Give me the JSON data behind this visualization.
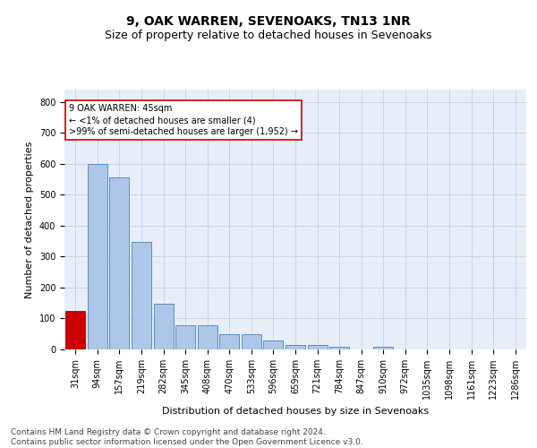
{
  "title": "9, OAK WARREN, SEVENOAKS, TN13 1NR",
  "subtitle": "Size of property relative to detached houses in Sevenoaks",
  "xlabel": "Distribution of detached houses by size in Sevenoaks",
  "ylabel": "Number of detached properties",
  "bar_labels": [
    "31sqm",
    "94sqm",
    "157sqm",
    "219sqm",
    "282sqm",
    "345sqm",
    "408sqm",
    "470sqm",
    "533sqm",
    "596sqm",
    "659sqm",
    "721sqm",
    "784sqm",
    "847sqm",
    "910sqm",
    "972sqm",
    "1035sqm",
    "1098sqm",
    "1161sqm",
    "1223sqm",
    "1286sqm"
  ],
  "bar_values": [
    125,
    600,
    557,
    347,
    148,
    78,
    78,
    50,
    50,
    30,
    14,
    14,
    10,
    0,
    8,
    0,
    0,
    0,
    0,
    0,
    0
  ],
  "bar_color": "#aec6e8",
  "bar_edge_color": "#5a8fc0",
  "highlighted_bar_index": 0,
  "highlight_color": "#cc0000",
  "annotation_text": "9 OAK WARREN: 45sqm\n← <1% of detached houses are smaller (4)\n>99% of semi-detached houses are larger (1,952) →",
  "annotation_box_color": "#ffffff",
  "annotation_box_edge": "#cc0000",
  "ylim": [
    0,
    840
  ],
  "yticks": [
    0,
    100,
    200,
    300,
    400,
    500,
    600,
    700,
    800
  ],
  "grid_color": "#c8d4e8",
  "bg_color": "#e8eef8",
  "footer": "Contains HM Land Registry data © Crown copyright and database right 2024.\nContains public sector information licensed under the Open Government Licence v3.0.",
  "title_fontsize": 10,
  "subtitle_fontsize": 9,
  "ylabel_fontsize": 8,
  "xlabel_fontsize": 8,
  "tick_fontsize": 7,
  "annotation_fontsize": 7,
  "footer_fontsize": 6.5
}
